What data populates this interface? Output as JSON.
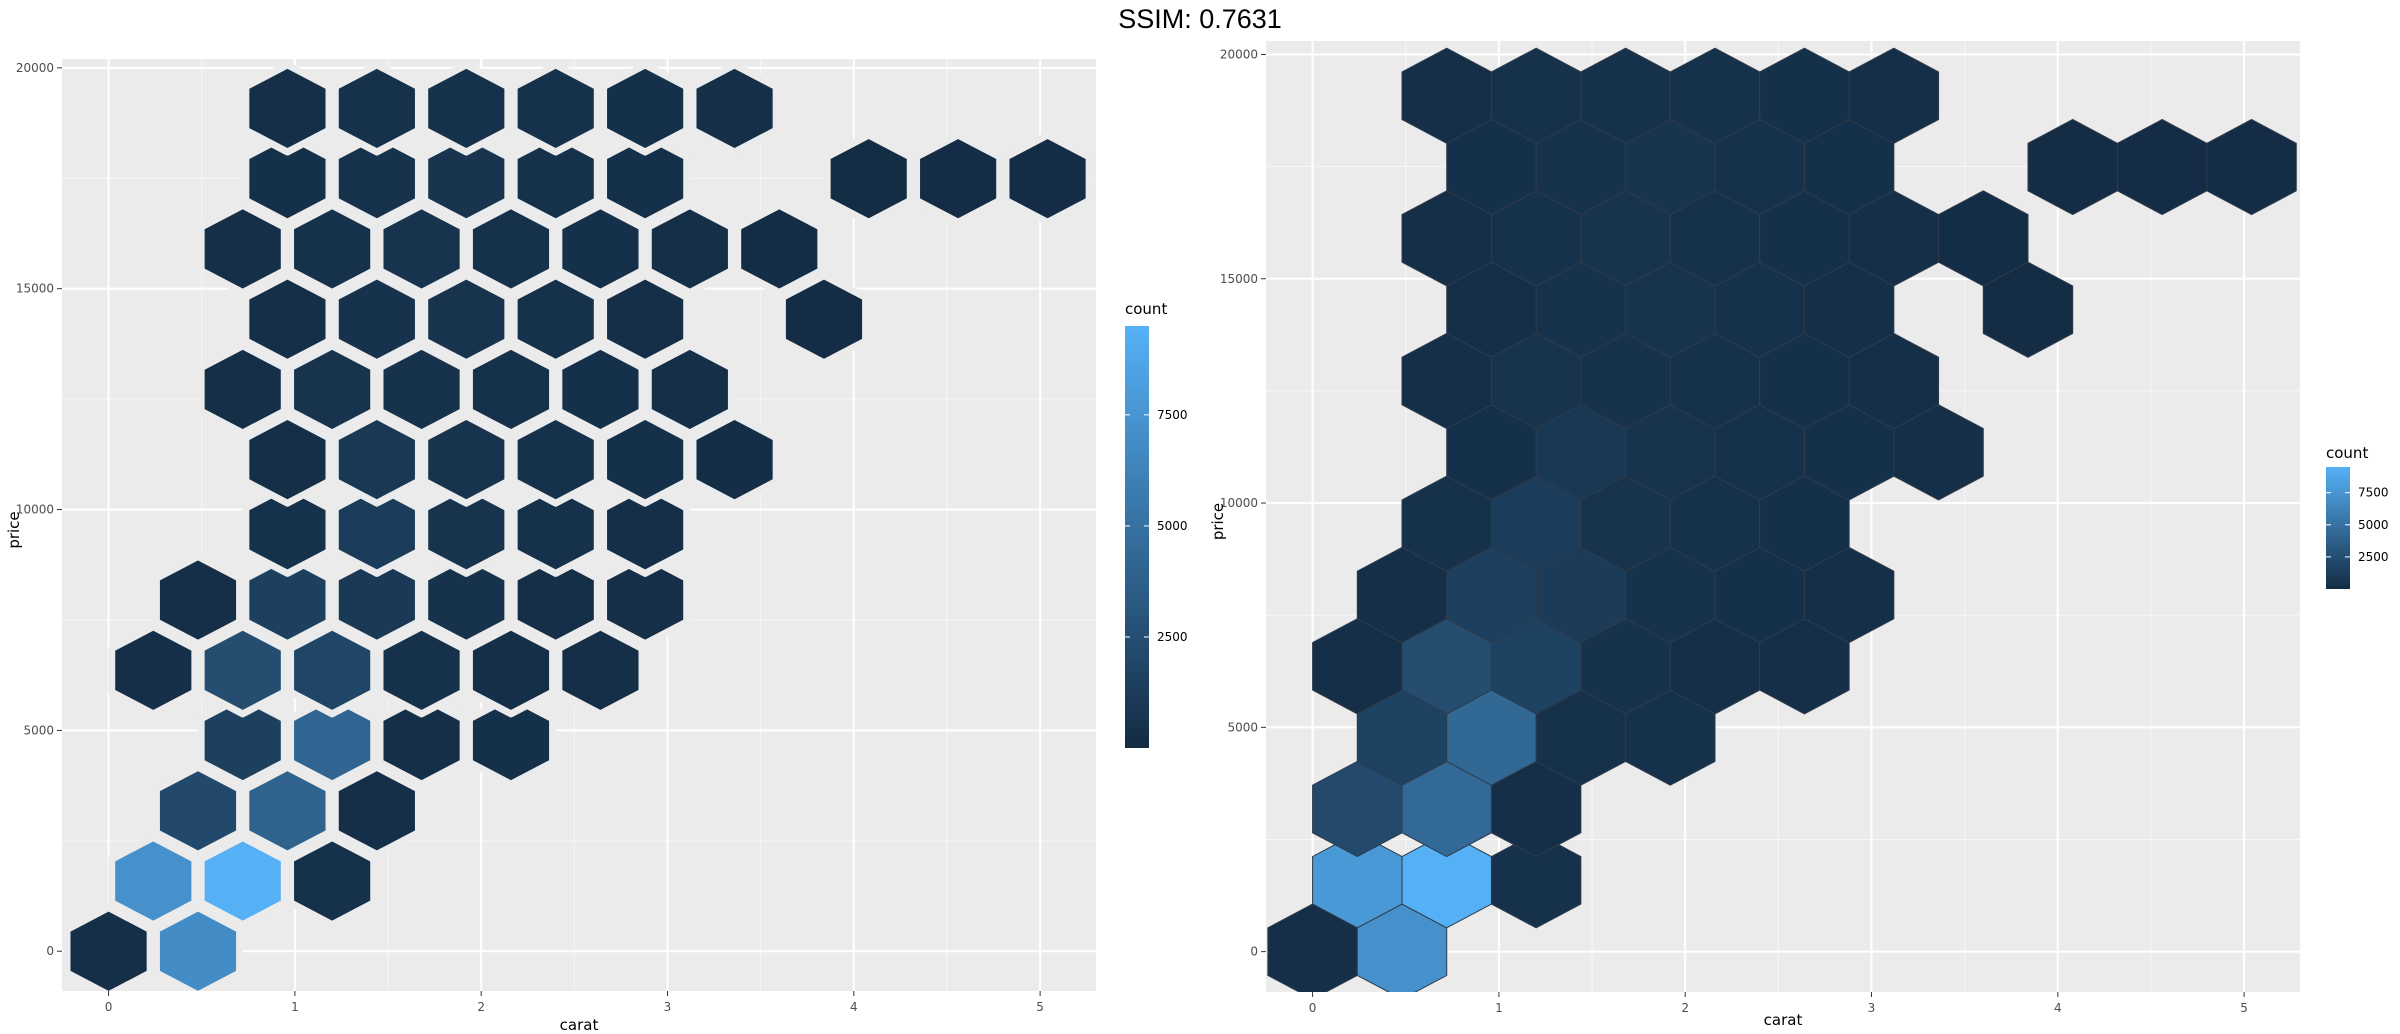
{
  "page": {
    "title": "SSIM: 0.7631"
  },
  "colors": {
    "panel_bg": "#ebebeb",
    "grid_major": "#ffffff",
    "low": "#132b43",
    "high": "#56b1f7",
    "left_hex_border": "#ebebeb",
    "right_hex_border": "#2f3b4a"
  },
  "chart_data": [
    {
      "type": "heatmap",
      "geometry": "hexbin",
      "title": "",
      "xlabel": "carat",
      "ylabel": "price",
      "xlim": [
        -0.25,
        5.3
      ],
      "ylim": [
        -900,
        20200
      ],
      "x_ticks": [
        0,
        1,
        2,
        3,
        4,
        5
      ],
      "y_ticks": [
        0,
        5000,
        10000,
        15000,
        20000
      ],
      "grid": true,
      "legend": {
        "title": "count",
        "position": "right",
        "ticks": [
          2500,
          5000,
          7500
        ],
        "range": [
          1,
          9500
        ]
      },
      "hex_size": {
        "dx": 0.48,
        "dy": 1590
      },
      "bins": [
        {
          "x": 0.0,
          "y": 0,
          "count": 300
        },
        {
          "x": 0.48,
          "y": 0,
          "count": 6900
        },
        {
          "x": 0.24,
          "y": 1590,
          "count": 7200
        },
        {
          "x": 0.72,
          "y": 1590,
          "count": 9400
        },
        {
          "x": 1.2,
          "y": 1590,
          "count": 400
        },
        {
          "x": 0.48,
          "y": 3180,
          "count": 2100
        },
        {
          "x": 0.96,
          "y": 3180,
          "count": 3900
        },
        {
          "x": 1.44,
          "y": 3180,
          "count": 250
        },
        {
          "x": 0.72,
          "y": 4770,
          "count": 1500
        },
        {
          "x": 1.2,
          "y": 4770,
          "count": 4100
        },
        {
          "x": 1.68,
          "y": 4770,
          "count": 300
        },
        {
          "x": 2.16,
          "y": 4770,
          "count": 350
        },
        {
          "x": 0.24,
          "y": 6360,
          "count": 300
        },
        {
          "x": 0.72,
          "y": 6360,
          "count": 2400
        },
        {
          "x": 1.2,
          "y": 6360,
          "count": 1900
        },
        {
          "x": 1.68,
          "y": 6360,
          "count": 400
        },
        {
          "x": 2.16,
          "y": 6360,
          "count": 300
        },
        {
          "x": 2.64,
          "y": 6360,
          "count": 250
        },
        {
          "x": 0.48,
          "y": 7950,
          "count": 300
        },
        {
          "x": 0.96,
          "y": 7950,
          "count": 1500
        },
        {
          "x": 1.44,
          "y": 7950,
          "count": 1000
        },
        {
          "x": 1.92,
          "y": 7950,
          "count": 500
        },
        {
          "x": 2.4,
          "y": 7950,
          "count": 300
        },
        {
          "x": 2.88,
          "y": 7950,
          "count": 250
        },
        {
          "x": 0.96,
          "y": 9540,
          "count": 400
        },
        {
          "x": 1.44,
          "y": 9540,
          "count": 1200
        },
        {
          "x": 1.92,
          "y": 9540,
          "count": 600
        },
        {
          "x": 2.4,
          "y": 9540,
          "count": 400
        },
        {
          "x": 2.88,
          "y": 9540,
          "count": 300
        },
        {
          "x": 0.96,
          "y": 11130,
          "count": 250
        },
        {
          "x": 1.44,
          "y": 11130,
          "count": 900
        },
        {
          "x": 1.92,
          "y": 11130,
          "count": 550
        },
        {
          "x": 2.4,
          "y": 11130,
          "count": 400
        },
        {
          "x": 2.88,
          "y": 11130,
          "count": 350
        },
        {
          "x": 3.36,
          "y": 11130,
          "count": 200
        },
        {
          "x": 0.72,
          "y": 12720,
          "count": 250
        },
        {
          "x": 1.2,
          "y": 12720,
          "count": 550
        },
        {
          "x": 1.68,
          "y": 12720,
          "count": 500
        },
        {
          "x": 2.16,
          "y": 12720,
          "count": 400
        },
        {
          "x": 2.64,
          "y": 12720,
          "count": 350
        },
        {
          "x": 3.12,
          "y": 12720,
          "count": 250
        },
        {
          "x": 0.96,
          "y": 14310,
          "count": 300
        },
        {
          "x": 1.44,
          "y": 14310,
          "count": 500
        },
        {
          "x": 1.92,
          "y": 14310,
          "count": 550
        },
        {
          "x": 2.4,
          "y": 14310,
          "count": 400
        },
        {
          "x": 2.88,
          "y": 14310,
          "count": 300
        },
        {
          "x": 3.84,
          "y": 14310,
          "count": 100
        },
        {
          "x": 0.72,
          "y": 15900,
          "count": 250
        },
        {
          "x": 1.2,
          "y": 15900,
          "count": 450
        },
        {
          "x": 1.68,
          "y": 15900,
          "count": 600
        },
        {
          "x": 2.16,
          "y": 15900,
          "count": 450
        },
        {
          "x": 2.64,
          "y": 15900,
          "count": 350
        },
        {
          "x": 3.12,
          "y": 15900,
          "count": 300
        },
        {
          "x": 3.6,
          "y": 15900,
          "count": 150
        },
        {
          "x": 0.96,
          "y": 17490,
          "count": 350
        },
        {
          "x": 1.44,
          "y": 17490,
          "count": 500
        },
        {
          "x": 1.92,
          "y": 17490,
          "count": 650
        },
        {
          "x": 2.4,
          "y": 17490,
          "count": 450
        },
        {
          "x": 2.88,
          "y": 17490,
          "count": 350
        },
        {
          "x": 4.08,
          "y": 17490,
          "count": 120
        },
        {
          "x": 4.56,
          "y": 17490,
          "count": 100
        },
        {
          "x": 5.04,
          "y": 17490,
          "count": 100
        },
        {
          "x": 0.96,
          "y": 19080,
          "count": 300
        },
        {
          "x": 1.44,
          "y": 19080,
          "count": 400
        },
        {
          "x": 1.92,
          "y": 19080,
          "count": 450
        },
        {
          "x": 2.4,
          "y": 19080,
          "count": 400
        },
        {
          "x": 2.88,
          "y": 19080,
          "count": 350
        },
        {
          "x": 3.36,
          "y": 19080,
          "count": 250
        }
      ]
    },
    {
      "type": "heatmap",
      "geometry": "hexbin",
      "title": "",
      "xlabel": "carat",
      "ylabel": "price",
      "xlim": [
        -0.25,
        5.3
      ],
      "ylim": [
        -900,
        20300
      ],
      "x_ticks": [
        0,
        1,
        2,
        3,
        4,
        5
      ],
      "y_ticks": [
        0,
        5000,
        10000,
        15000,
        20000
      ],
      "grid": true,
      "legend": {
        "title": "count",
        "position": "right",
        "ticks": [
          2500,
          5000,
          7500
        ],
        "range": [
          1,
          9500
        ]
      },
      "hex_size": {
        "dx": 0.48,
        "dy": 1590
      },
      "bins": [
        {
          "x": 0.0,
          "y": 0,
          "count": 300
        },
        {
          "x": 0.48,
          "y": 0,
          "count": 7200
        },
        {
          "x": 0.24,
          "y": 1590,
          "count": 7800
        },
        {
          "x": 0.72,
          "y": 1590,
          "count": 9400
        },
        {
          "x": 1.2,
          "y": 1590,
          "count": 400
        },
        {
          "x": 0.24,
          "y": 3180,
          "count": 2200
        },
        {
          "x": 0.72,
          "y": 3180,
          "count": 4400
        },
        {
          "x": 1.2,
          "y": 3180,
          "count": 300
        },
        {
          "x": 0.48,
          "y": 4770,
          "count": 1600
        },
        {
          "x": 0.96,
          "y": 4770,
          "count": 4300
        },
        {
          "x": 1.44,
          "y": 4770,
          "count": 400
        },
        {
          "x": 1.92,
          "y": 4770,
          "count": 400
        },
        {
          "x": 0.24,
          "y": 6360,
          "count": 300
        },
        {
          "x": 0.72,
          "y": 6360,
          "count": 2400
        },
        {
          "x": 1.2,
          "y": 6360,
          "count": 1600
        },
        {
          "x": 1.68,
          "y": 6360,
          "count": 500
        },
        {
          "x": 2.16,
          "y": 6360,
          "count": 300
        },
        {
          "x": 2.64,
          "y": 6360,
          "count": 300
        },
        {
          "x": 0.48,
          "y": 7950,
          "count": 300
        },
        {
          "x": 0.96,
          "y": 7950,
          "count": 1500
        },
        {
          "x": 1.44,
          "y": 7950,
          "count": 1100
        },
        {
          "x": 1.92,
          "y": 7950,
          "count": 500
        },
        {
          "x": 2.4,
          "y": 7950,
          "count": 350
        },
        {
          "x": 2.88,
          "y": 7950,
          "count": 300
        },
        {
          "x": 0.72,
          "y": 9540,
          "count": 400
        },
        {
          "x": 1.2,
          "y": 9540,
          "count": 1200
        },
        {
          "x": 1.68,
          "y": 9540,
          "count": 600
        },
        {
          "x": 2.16,
          "y": 9540,
          "count": 450
        },
        {
          "x": 2.64,
          "y": 9540,
          "count": 350
        },
        {
          "x": 0.96,
          "y": 11130,
          "count": 350
        },
        {
          "x": 1.44,
          "y": 11130,
          "count": 900
        },
        {
          "x": 1.92,
          "y": 11130,
          "count": 550
        },
        {
          "x": 2.4,
          "y": 11130,
          "count": 400
        },
        {
          "x": 2.88,
          "y": 11130,
          "count": 350
        },
        {
          "x": 3.36,
          "y": 11130,
          "count": 250
        },
        {
          "x": 0.72,
          "y": 12720,
          "count": 300
        },
        {
          "x": 1.2,
          "y": 12720,
          "count": 550
        },
        {
          "x": 1.68,
          "y": 12720,
          "count": 500
        },
        {
          "x": 2.16,
          "y": 12720,
          "count": 400
        },
        {
          "x": 2.64,
          "y": 12720,
          "count": 350
        },
        {
          "x": 3.12,
          "y": 12720,
          "count": 300
        },
        {
          "x": 0.96,
          "y": 14310,
          "count": 300
        },
        {
          "x": 1.44,
          "y": 14310,
          "count": 500
        },
        {
          "x": 1.92,
          "y": 14310,
          "count": 550
        },
        {
          "x": 2.4,
          "y": 14310,
          "count": 400
        },
        {
          "x": 2.88,
          "y": 14310,
          "count": 300
        },
        {
          "x": 3.84,
          "y": 14310,
          "count": 120
        },
        {
          "x": 0.72,
          "y": 15900,
          "count": 300
        },
        {
          "x": 1.2,
          "y": 15900,
          "count": 450
        },
        {
          "x": 1.68,
          "y": 15900,
          "count": 600
        },
        {
          "x": 2.16,
          "y": 15900,
          "count": 450
        },
        {
          "x": 2.64,
          "y": 15900,
          "count": 350
        },
        {
          "x": 3.12,
          "y": 15900,
          "count": 300
        },
        {
          "x": 3.6,
          "y": 15900,
          "count": 150
        },
        {
          "x": 0.96,
          "y": 17490,
          "count": 350
        },
        {
          "x": 1.44,
          "y": 17490,
          "count": 500
        },
        {
          "x": 1.92,
          "y": 17490,
          "count": 650
        },
        {
          "x": 2.4,
          "y": 17490,
          "count": 450
        },
        {
          "x": 2.88,
          "y": 17490,
          "count": 350
        },
        {
          "x": 4.08,
          "y": 17490,
          "count": 130
        },
        {
          "x": 4.56,
          "y": 17490,
          "count": 100
        },
        {
          "x": 5.04,
          "y": 17490,
          "count": 100
        },
        {
          "x": 0.72,
          "y": 19080,
          "count": 300
        },
        {
          "x": 1.2,
          "y": 19080,
          "count": 400
        },
        {
          "x": 1.68,
          "y": 19080,
          "count": 450
        },
        {
          "x": 2.16,
          "y": 19080,
          "count": 400
        },
        {
          "x": 2.64,
          "y": 19080,
          "count": 350
        },
        {
          "x": 3.12,
          "y": 19080,
          "count": 300
        }
      ]
    }
  ]
}
